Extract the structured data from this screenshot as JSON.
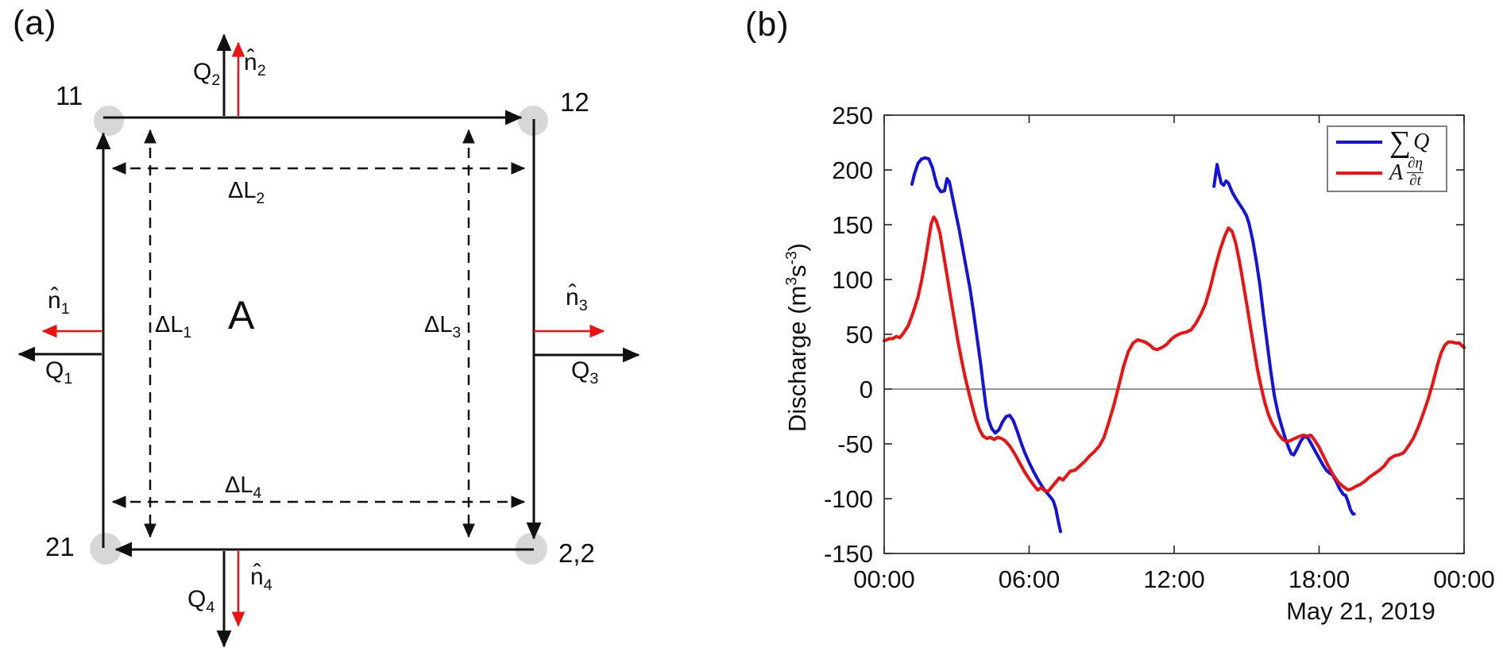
{
  "colors": {
    "red": "#ee1111",
    "blue": "#1313dd",
    "ink": "#111111",
    "dot": "#d7d7d7",
    "axis": "#222222",
    "zero_line": "#555555",
    "legendborder": "#7f7f7f"
  },
  "panel_a": {
    "label": "(a)",
    "area": "A",
    "corners": {
      "tl": "11",
      "tr": "12",
      "bl": "21",
      "br": "2,2"
    },
    "labels": {
      "q1": {
        "base": "Q",
        "sub": "1"
      },
      "q2": {
        "base": "Q",
        "sub": "2"
      },
      "q3": {
        "base": "Q",
        "sub": "3"
      },
      "q4": {
        "base": "Q",
        "sub": "4"
      },
      "n1": {
        "base": "n̂",
        "sub": "1"
      },
      "n2": {
        "base": "n̂",
        "sub": "2"
      },
      "n3": {
        "base": "n̂",
        "sub": "3"
      },
      "n4": {
        "base": "n̂",
        "sub": "4"
      },
      "dl1": {
        "base": "ΔL",
        "sub": "1"
      },
      "dl2": {
        "base": "ΔL",
        "sub": "2"
      },
      "dl3": {
        "base": "ΔL",
        "sub": "3"
      },
      "dl4": {
        "base": "ΔL",
        "sub": "4"
      }
    }
  },
  "panel_b": {
    "label": "(b)",
    "chart_data": {
      "type": "line",
      "title": "",
      "xlabel": "May 21, 2019",
      "ylabel": "Discharge (m3s-3)",
      "ylabel_parts": [
        "Discharge (m",
        "3",
        "s",
        "-3",
        ")"
      ],
      "x_ticks": [
        "00:00",
        "06:00",
        "12:00",
        "18:00",
        "00:00"
      ],
      "x_tick_hours": [
        0,
        6,
        12,
        18,
        24
      ],
      "y_ticks": [
        250,
        200,
        150,
        100,
        50,
        0,
        -50,
        -100,
        -150
      ],
      "ylim": [
        -150,
        250
      ],
      "xlim_hours": [
        0,
        24
      ],
      "grid": false,
      "zero_line": true,
      "legend": {
        "position": "top-right",
        "entries": [
          {
            "sigma": "∑",
            "var": "Q"
          },
          {
            "var": "A",
            "frac_top": "∂η",
            "frac_bottom": "∂t"
          }
        ]
      },
      "series": [
        {
          "id": "sumQ",
          "name": "∑Q",
          "color_key": "blue",
          "segments": [
            [
              [
                1.15,
                187
              ],
              [
                1.25,
                196
              ],
              [
                1.4,
                206
              ],
              [
                1.55,
                210
              ],
              [
                1.7,
                211
              ],
              [
                1.85,
                210
              ],
              [
                2.0,
                202
              ],
              [
                2.1,
                193
              ],
              [
                2.2,
                185
              ],
              [
                2.35,
                180
              ],
              [
                2.5,
                181
              ],
              [
                2.6,
                192
              ],
              [
                2.7,
                189
              ],
              [
                2.8,
                178
              ],
              [
                2.95,
                162
              ],
              [
                3.1,
                146
              ],
              [
                3.25,
                128
              ],
              [
                3.4,
                110
              ],
              [
                3.55,
                92
              ],
              [
                3.7,
                70
              ],
              [
                3.85,
                46
              ],
              [
                4.0,
                22
              ],
              [
                4.1,
                4
              ],
              [
                4.2,
                -14
              ],
              [
                4.3,
                -27
              ],
              [
                4.45,
                -36
              ],
              [
                4.6,
                -40
              ],
              [
                4.75,
                -37
              ],
              [
                4.9,
                -30
              ],
              [
                5.05,
                -25
              ],
              [
                5.2,
                -24
              ],
              [
                5.35,
                -29
              ],
              [
                5.5,
                -38
              ],
              [
                5.65,
                -48
              ],
              [
                5.8,
                -57
              ],
              [
                6.0,
                -67
              ],
              [
                6.2,
                -76
              ],
              [
                6.4,
                -84
              ],
              [
                6.6,
                -91
              ],
              [
                6.75,
                -95
              ],
              [
                6.9,
                -99
              ],
              [
                7.0,
                -102
              ],
              [
                7.1,
                -109
              ],
              [
                7.2,
                -120
              ],
              [
                7.3,
                -130
              ]
            ],
            [
              [
                13.65,
                185
              ],
              [
                13.72,
                196
              ],
              [
                13.78,
                205
              ],
              [
                13.85,
                197
              ],
              [
                13.95,
                188
              ],
              [
                14.05,
                186
              ],
              [
                14.15,
                190
              ],
              [
                14.25,
                188
              ],
              [
                14.4,
                180
              ],
              [
                14.55,
                174
              ],
              [
                14.7,
                169
              ],
              [
                14.85,
                164
              ],
              [
                15.0,
                158
              ],
              [
                15.1,
                151
              ],
              [
                15.25,
                136
              ],
              [
                15.4,
                117
              ],
              [
                15.55,
                95
              ],
              [
                15.7,
                68
              ],
              [
                15.85,
                42
              ],
              [
                16.0,
                16
              ],
              [
                16.15,
                -6
              ],
              [
                16.3,
                -22
              ],
              [
                16.45,
                -34
              ],
              [
                16.6,
                -45
              ],
              [
                16.75,
                -54
              ],
              [
                16.85,
                -59
              ],
              [
                16.95,
                -60
              ],
              [
                17.1,
                -54
              ],
              [
                17.25,
                -47
              ],
              [
                17.4,
                -43
              ],
              [
                17.55,
                -45
              ],
              [
                17.7,
                -51
              ],
              [
                17.85,
                -57
              ],
              [
                18.0,
                -63
              ],
              [
                18.15,
                -69
              ],
              [
                18.3,
                -74
              ],
              [
                18.45,
                -77
              ],
              [
                18.55,
                -78
              ],
              [
                18.7,
                -84
              ],
              [
                18.85,
                -91
              ],
              [
                19.0,
                -96
              ],
              [
                19.1,
                -97
              ],
              [
                19.2,
                -103
              ],
              [
                19.3,
                -110
              ],
              [
                19.4,
                -114
              ],
              [
                19.45,
                -114
              ]
            ]
          ]
        },
        {
          "id": "AdEtaDt",
          "name": "A ∂η/∂t",
          "color_key": "red",
          "segments": [
            [
              [
                0,
                44
              ],
              [
                0.2,
                46
              ],
              [
                0.35,
                46
              ],
              [
                0.5,
                48
              ],
              [
                0.65,
                47
              ],
              [
                0.8,
                51
              ],
              [
                1.0,
                58
              ],
              [
                1.2,
                70
              ],
              [
                1.4,
                84
              ],
              [
                1.55,
                99
              ],
              [
                1.7,
                117
              ],
              [
                1.85,
                138
              ],
              [
                1.95,
                151
              ],
              [
                2.05,
                157
              ],
              [
                2.15,
                154
              ],
              [
                2.3,
                143
              ],
              [
                2.45,
                124
              ],
              [
                2.6,
                104
              ],
              [
                2.75,
                84
              ],
              [
                2.9,
                64
              ],
              [
                3.05,
                44
              ],
              [
                3.2,
                27
              ],
              [
                3.35,
                11
              ],
              [
                3.5,
                -3
              ],
              [
                3.65,
                -16
              ],
              [
                3.8,
                -28
              ],
              [
                3.95,
                -37
              ],
              [
                4.1,
                -43
              ],
              [
                4.25,
                -45
              ],
              [
                4.4,
                -44
              ],
              [
                4.55,
                -46
              ],
              [
                4.7,
                -44
              ],
              [
                4.85,
                -45
              ],
              [
                5.0,
                -47
              ],
              [
                5.2,
                -52
              ],
              [
                5.4,
                -59
              ],
              [
                5.6,
                -67
              ],
              [
                5.8,
                -75
              ],
              [
                6.0,
                -82
              ],
              [
                6.2,
                -88
              ],
              [
                6.35,
                -92
              ],
              [
                6.5,
                -90
              ],
              [
                6.65,
                -93
              ],
              [
                6.8,
                -93
              ],
              [
                6.95,
                -89
              ],
              [
                7.1,
                -85
              ],
              [
                7.25,
                -81
              ],
              [
                7.4,
                -83
              ],
              [
                7.55,
                -79
              ],
              [
                7.7,
                -75
              ],
              [
                7.9,
                -74
              ],
              [
                8.1,
                -70
              ],
              [
                8.3,
                -66
              ],
              [
                8.5,
                -61
              ],
              [
                8.7,
                -57
              ],
              [
                8.9,
                -52
              ],
              [
                9.1,
                -44
              ],
              [
                9.3,
                -30
              ],
              [
                9.5,
                -15
              ],
              [
                9.7,
                2
              ],
              [
                9.9,
                20
              ],
              [
                10.1,
                34
              ],
              [
                10.3,
                42
              ],
              [
                10.5,
                45
              ],
              [
                10.65,
                44
              ],
              [
                10.8,
                43
              ],
              [
                11.0,
                40
              ],
              [
                11.15,
                37
              ],
              [
                11.3,
                36
              ],
              [
                11.5,
                38
              ],
              [
                11.7,
                41
              ],
              [
                11.9,
                46
              ],
              [
                12.1,
                49
              ],
              [
                12.3,
                51
              ],
              [
                12.5,
                52
              ],
              [
                12.7,
                54
              ],
              [
                12.9,
                60
              ],
              [
                13.1,
                68
              ],
              [
                13.3,
                78
              ],
              [
                13.5,
                93
              ],
              [
                13.7,
                111
              ],
              [
                13.9,
                127
              ],
              [
                14.1,
                140
              ],
              [
                14.25,
                147
              ],
              [
                14.4,
                144
              ],
              [
                14.55,
                133
              ],
              [
                14.7,
                117
              ],
              [
                14.85,
                98
              ],
              [
                15.0,
                78
              ],
              [
                15.15,
                58
              ],
              [
                15.3,
                38
              ],
              [
                15.45,
                18
              ],
              [
                15.6,
                2
              ],
              [
                15.75,
                -12
              ],
              [
                15.9,
                -23
              ],
              [
                16.05,
                -31
              ],
              [
                16.2,
                -37
              ],
              [
                16.35,
                -42
              ],
              [
                16.5,
                -46
              ],
              [
                16.65,
                -48
              ],
              [
                16.8,
                -47
              ],
              [
                17.0,
                -45
              ],
              [
                17.2,
                -43
              ],
              [
                17.35,
                -42
              ],
              [
                17.5,
                -43
              ],
              [
                17.65,
                -42
              ],
              [
                17.8,
                -46
              ],
              [
                18.0,
                -53
              ],
              [
                18.2,
                -62
              ],
              [
                18.4,
                -71
              ],
              [
                18.6,
                -79
              ],
              [
                18.8,
                -85
              ],
              [
                19.0,
                -89
              ],
              [
                19.2,
                -92
              ],
              [
                19.35,
                -91
              ],
              [
                19.5,
                -89
              ],
              [
                19.7,
                -87
              ],
              [
                19.9,
                -84
              ],
              [
                20.1,
                -80
              ],
              [
                20.3,
                -77
              ],
              [
                20.5,
                -74
              ],
              [
                20.7,
                -70
              ],
              [
                20.9,
                -64
              ],
              [
                21.1,
                -61
              ],
              [
                21.3,
                -60
              ],
              [
                21.5,
                -58
              ],
              [
                21.7,
                -52
              ],
              [
                21.9,
                -45
              ],
              [
                22.1,
                -35
              ],
              [
                22.3,
                -23
              ],
              [
                22.5,
                -10
              ],
              [
                22.7,
                5
              ],
              [
                22.9,
                22
              ],
              [
                23.05,
                33
              ],
              [
                23.2,
                40
              ],
              [
                23.35,
                43
              ],
              [
                23.5,
                43
              ],
              [
                23.65,
                42
              ],
              [
                23.8,
                42
              ],
              [
                24.0,
                38
              ]
            ]
          ]
        }
      ]
    }
  }
}
